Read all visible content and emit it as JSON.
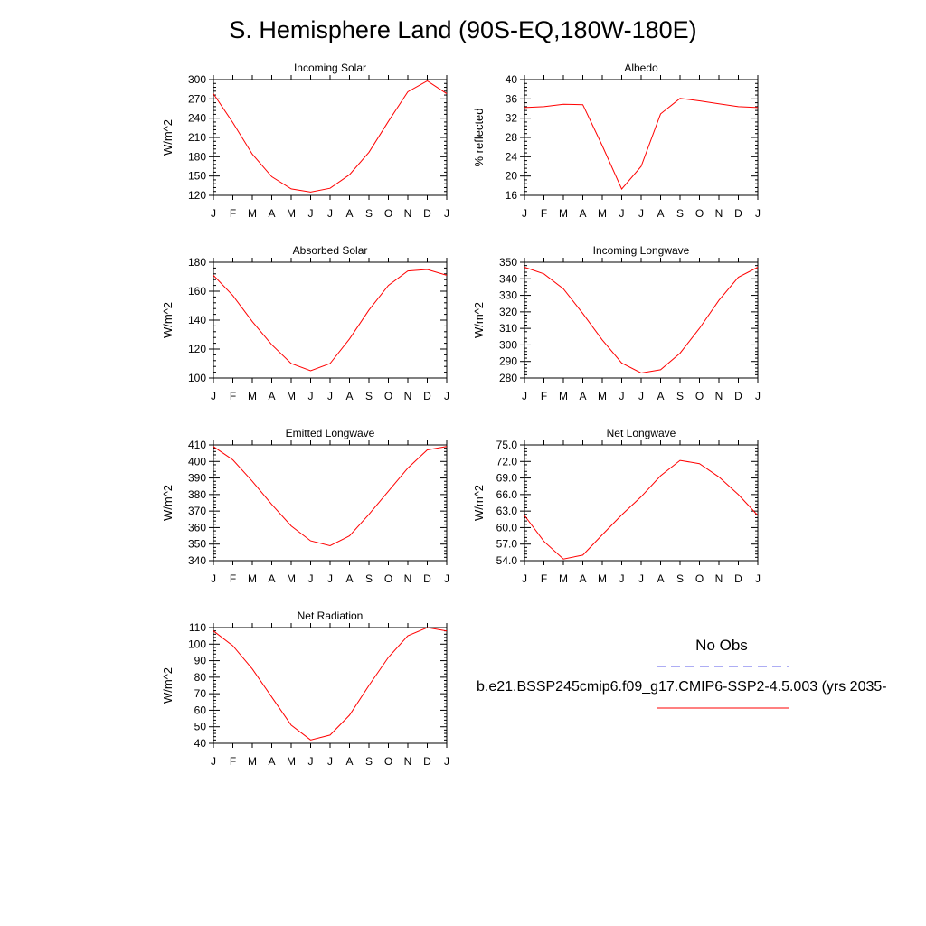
{
  "title": "S. Hemisphere Land (90S-EQ,180W-180E)",
  "legend": {
    "title": "No Obs",
    "obs_color": "#5b5be8",
    "model_label": "b.e21.BSSP245cmip6.f09_g17.CMIP6-SSP2-4.5.003 (yrs 2035-",
    "model_color": "#ff0000"
  },
  "chart_data": [
    {
      "type": "line",
      "id": "incoming-solar",
      "title": "Incoming Solar",
      "ylabel": "W/m^2",
      "ylim": [
        120,
        300
      ],
      "yticks": [
        "300",
        "270",
        "240",
        "210",
        "180",
        "150",
        "120"
      ],
      "categories": [
        "J",
        "F",
        "M",
        "A",
        "M",
        "J",
        "J",
        "A",
        "S",
        "O",
        "N",
        "D",
        "J"
      ],
      "values": [
        278,
        233,
        184,
        149,
        130,
        125,
        131,
        152,
        187,
        235,
        281,
        298,
        278
      ]
    },
    {
      "type": "line",
      "id": "albedo",
      "title": "Albedo",
      "ylabel": "% reflected",
      "ylim": [
        16,
        40
      ],
      "yticks": [
        "40",
        "36",
        "32",
        "28",
        "24",
        "20",
        "16"
      ],
      "categories": [
        "J",
        "F",
        "M",
        "A",
        "M",
        "J",
        "J",
        "A",
        "S",
        "O",
        "N",
        "D",
        "J"
      ],
      "values": [
        34.2,
        34.4,
        34.9,
        34.8,
        26.3,
        17.3,
        22.0,
        32.9,
        36.1,
        35.6,
        35.0,
        34.4,
        34.2
      ]
    },
    {
      "type": "line",
      "id": "absorbed-solar",
      "title": "Absorbed Solar",
      "ylabel": "W/m^2",
      "ylim": [
        100,
        180
      ],
      "yticks": [
        "180",
        "160",
        "140",
        "120",
        "100"
      ],
      "categories": [
        "J",
        "F",
        "M",
        "A",
        "M",
        "J",
        "J",
        "A",
        "S",
        "O",
        "N",
        "D",
        "J"
      ],
      "values": [
        171,
        157,
        139,
        123,
        110,
        105,
        110,
        127,
        147,
        164,
        174,
        175,
        171
      ]
    },
    {
      "type": "line",
      "id": "incoming-longwave",
      "title": "Incoming Longwave",
      "ylabel": "W/m^2",
      "ylim": [
        280,
        350
      ],
      "yticks": [
        "350",
        "340",
        "330",
        "320",
        "310",
        "300",
        "290",
        "280"
      ],
      "categories": [
        "J",
        "F",
        "M",
        "A",
        "M",
        "J",
        "J",
        "A",
        "S",
        "O",
        "N",
        "D",
        "J"
      ],
      "values": [
        347,
        343,
        334,
        319,
        303,
        289,
        283,
        285,
        295,
        310,
        327,
        341,
        347
      ]
    },
    {
      "type": "line",
      "id": "emitted-longwave",
      "title": "Emitted Longwave",
      "ylabel": "W/m^2",
      "ylim": [
        340,
        410
      ],
      "yticks": [
        "410",
        "400",
        "390",
        "380",
        "370",
        "360",
        "350",
        "340"
      ],
      "categories": [
        "J",
        "F",
        "M",
        "A",
        "M",
        "J",
        "J",
        "A",
        "S",
        "O",
        "N",
        "D",
        "J"
      ],
      "values": [
        409,
        401,
        388,
        374,
        361,
        352,
        349,
        355,
        368,
        382,
        396,
        407,
        409
      ]
    },
    {
      "type": "line",
      "id": "net-longwave",
      "title": "Net Longwave",
      "ylabel": "W/m^2",
      "ylim": [
        54,
        75
      ],
      "yticks": [
        "75.0",
        "72.0",
        "69.0",
        "66.0",
        "63.0",
        "60.0",
        "57.0",
        "54.0"
      ],
      "categories": [
        "J",
        "F",
        "M",
        "A",
        "M",
        "J",
        "J",
        "A",
        "S",
        "O",
        "N",
        "D",
        "J"
      ],
      "values": [
        62.2,
        57.5,
        54.3,
        55.0,
        58.7,
        62.3,
        65.6,
        69.4,
        72.2,
        71.6,
        69.2,
        66.0,
        62.2
      ]
    },
    {
      "type": "line",
      "id": "net-radiation",
      "title": "Net Radiation",
      "ylabel": "W/m^2",
      "ylim": [
        40,
        110
      ],
      "yticks": [
        "110",
        "100",
        "90",
        "80",
        "70",
        "60",
        "50",
        "40"
      ],
      "categories": [
        "J",
        "F",
        "M",
        "A",
        "M",
        "J",
        "J",
        "A",
        "S",
        "O",
        "N",
        "D",
        "J"
      ],
      "values": [
        108,
        99,
        85,
        68,
        51,
        42,
        45,
        57,
        75,
        92,
        105,
        110,
        108
      ]
    }
  ]
}
